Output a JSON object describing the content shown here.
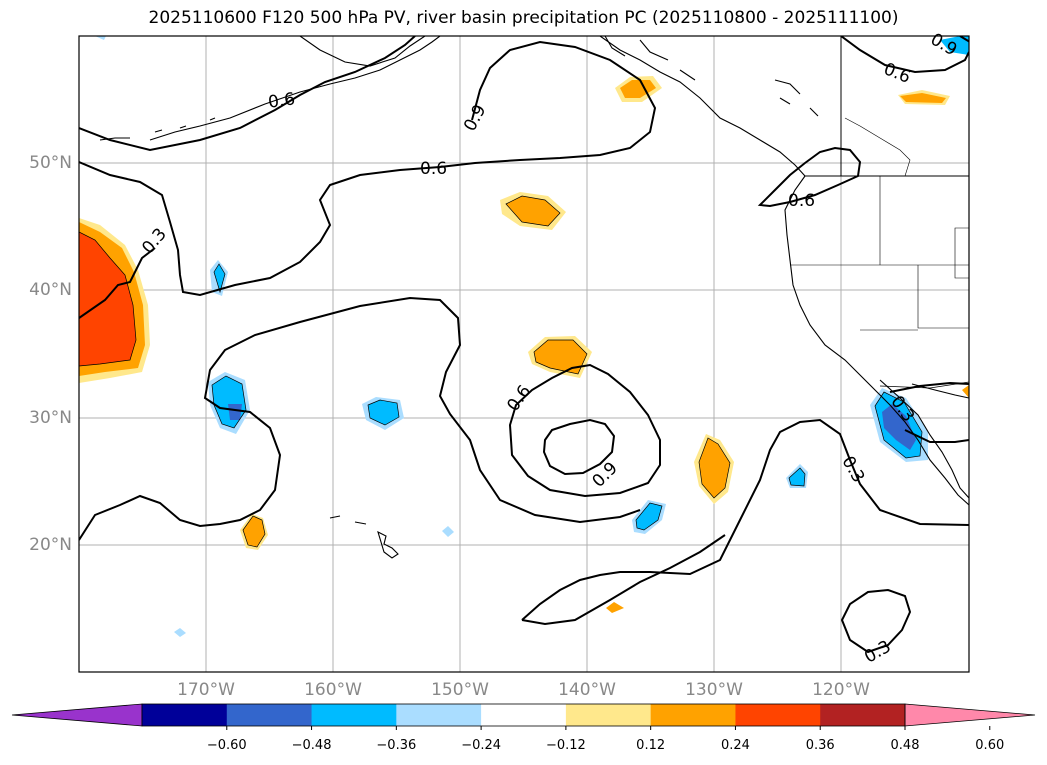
{
  "title": "2025110600 F120 500 hPa PV, river basin precipitation PC (2025110800 - 2025111100)",
  "lon_ticks": [
    "170°W",
    "160°W",
    "150°W",
    "140°W",
    "130°W",
    "120°W"
  ],
  "lat_ticks": [
    "50°N",
    "40°N",
    "30°N",
    "20°N"
  ],
  "contour_labels": [
    "0.6",
    "0.9",
    "0.6",
    "0.3",
    "0.6",
    "0.9",
    "0.9",
    "0.6",
    "0.6",
    "0.3",
    "0.3",
    "0.3"
  ],
  "colorbar": {
    "tick_labels": [
      "−0.60",
      "−0.48",
      "−0.36",
      "−0.24",
      "−0.12",
      "0.12",
      "0.24",
      "0.36",
      "0.48",
      "0.60"
    ],
    "tick_values": [
      -0.6,
      -0.48,
      -0.36,
      -0.24,
      -0.12,
      0.12,
      0.24,
      0.36,
      0.48,
      0.6
    ],
    "colors": [
      "#9933cc",
      "#000099",
      "#3366cc",
      "#00bbff",
      "#aaddff",
      "#ffffff",
      "#ffe88c",
      "#ffa200",
      "#ff4400",
      "#b22222",
      "#ff88aa"
    ]
  },
  "map_extent": {
    "lon": [
      -180,
      -110
    ],
    "lat": [
      10,
      60
    ]
  }
}
